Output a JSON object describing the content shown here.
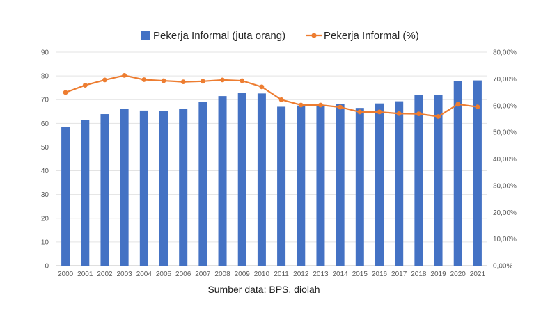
{
  "colors": {
    "bar": "#4472C4",
    "line": "#ED7D31",
    "grid": "#E3E3E3",
    "axis": "#BFBFBF"
  },
  "chart_data": {
    "type": "bar",
    "categories": [
      "2000",
      "2001",
      "2002",
      "2003",
      "2004",
      "2005",
      "2006",
      "2007",
      "2008",
      "2009",
      "2010",
      "2011",
      "2012",
      "2013",
      "2014",
      "2015",
      "2016",
      "2017",
      "2018",
      "2019",
      "2020",
      "2021"
    ],
    "series": [
      {
        "name": "Pekerja Informal (juta orang)",
        "type": "bar",
        "axis": "left",
        "values": [
          58.5,
          61.5,
          63.9,
          66.2,
          65.4,
          65.2,
          66.0,
          69.0,
          71.5,
          72.9,
          72.6,
          67.0,
          67.5,
          67.5,
          68.2,
          66.5,
          68.4,
          69.3,
          72.1,
          72.1,
          77.7,
          78.1
        ]
      },
      {
        "name": "Pekerja Informal (%)",
        "type": "line",
        "axis": "right",
        "values": [
          64.9,
          67.6,
          69.6,
          71.3,
          69.7,
          69.3,
          68.9,
          69.1,
          69.6,
          69.3,
          67.0,
          62.2,
          60.2,
          60.2,
          59.4,
          57.6,
          57.6,
          57.0,
          56.9,
          55.9,
          60.5,
          59.5
        ]
      }
    ],
    "y_left": {
      "ticks": [
        "0",
        "10",
        "20",
        "30",
        "40",
        "50",
        "60",
        "70",
        "80",
        "90"
      ],
      "ylim": [
        0,
        90
      ]
    },
    "y_right": {
      "ticks": [
        "0,00%",
        "10,00%",
        "20,00%",
        "30,00%",
        "40,00%",
        "50,00%",
        "60,00%",
        "70,00%",
        "80,00%"
      ],
      "ylim": [
        0,
        80
      ]
    },
    "grid": true,
    "legend": "top-center",
    "source_note": "Sumber data: BPS, diolah"
  }
}
